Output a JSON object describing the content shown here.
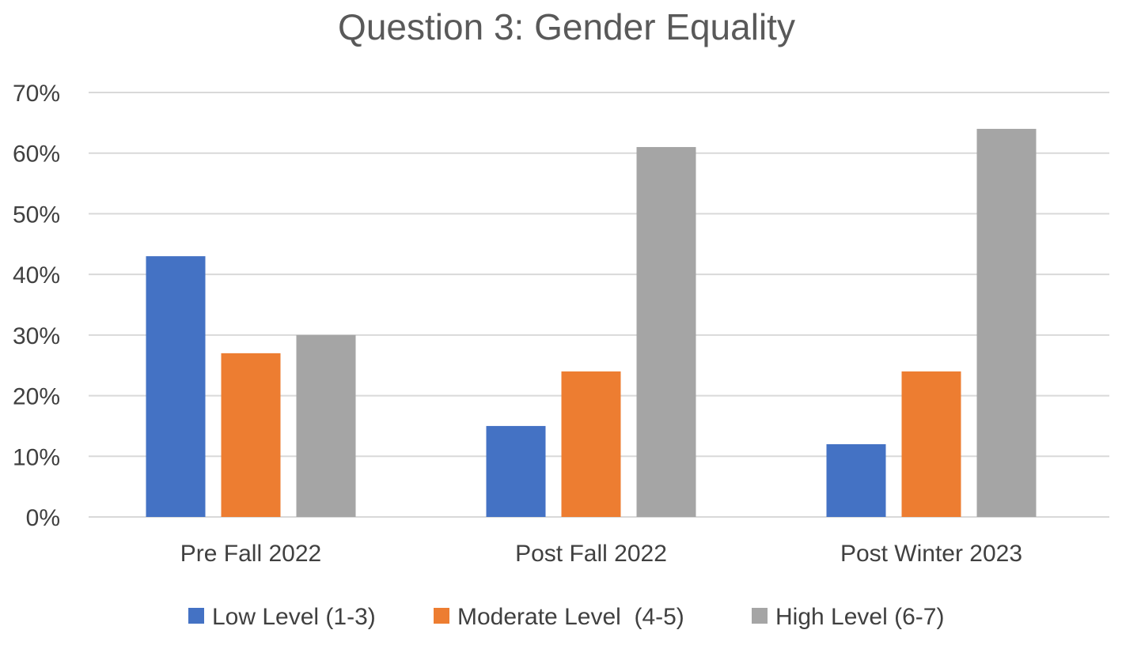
{
  "chart_data": {
    "type": "bar",
    "title": "Question 3: Gender Equality",
    "xlabel": "",
    "ylabel": "",
    "categories": [
      "Pre Fall 2022",
      "Post Fall 2022",
      "Post Winter 2023"
    ],
    "series": [
      {
        "name": "Low Level (1-3)",
        "color": "#4472C4",
        "values": [
          43,
          15,
          12
        ]
      },
      {
        "name": "Moderate Level  (4-5)",
        "color": "#ED7D31",
        "values": [
          27,
          24,
          24
        ]
      },
      {
        "name": "High Level (6-7)",
        "color": "#A5A5A5",
        "values": [
          30,
          61,
          64
        ]
      }
    ],
    "ylim": [
      0,
      70
    ],
    "yticks": [
      0,
      10,
      20,
      30,
      40,
      50,
      60,
      70
    ],
    "ytick_labels": [
      "0%",
      "10%",
      "20%",
      "30%",
      "40%",
      "50%",
      "60%",
      "70%"
    ],
    "grid": true,
    "legend_position": "bottom",
    "colors": {
      "gridline": "#D9D9D9",
      "text": "#404040",
      "title": "#595959"
    }
  }
}
